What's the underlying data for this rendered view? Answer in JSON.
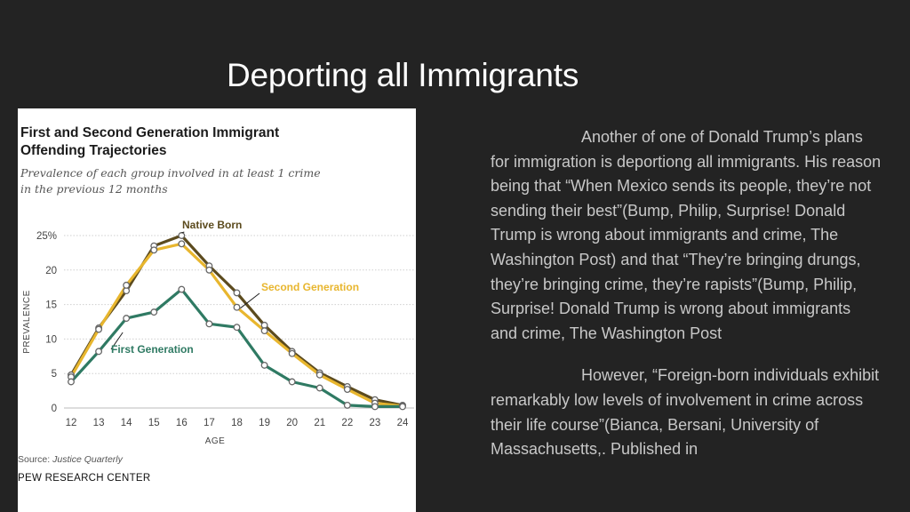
{
  "slide": {
    "title": "Deporting all Immigrants",
    "paragraphs": [
      "Another of one of Donald Trump’s plans for immigration is deportiong all immigrants.  His reason being that “When Mexico sends its people, they’re not sending their best”(Bump, Philip, Surprise! Donald Trump is wrong about immigrants and crime, The Washington Post) and that “They’re bringing drungs, they’re bringing crime, they’re rapists”(Bump, Philip, Surprise! Donald Trump is wrong about immigrants and crime, The Washington Post",
      "However, “Foreign-born individuals exhibit remarkably low levels of involvement in crime across their life course”(Bianca, Bersani, University of Massachusetts,. Published in"
    ]
  },
  "chart_data": {
    "type": "line",
    "title": "First and Second Generation Immigrant Offending Trajectories",
    "title_lines": [
      "First and Second Generation Immigrant",
      "Offending Trajectories"
    ],
    "subtitle_lines": [
      "Prevalence of each group involved in at least 1 crime",
      "in the previous 12 months"
    ],
    "xlabel": "AGE",
    "ylabel": "PREVALENCE",
    "x": [
      12,
      13,
      14,
      15,
      16,
      17,
      18,
      19,
      20,
      21,
      22,
      23,
      24
    ],
    "ylim": [
      0,
      25
    ],
    "yticks": [
      0,
      5,
      10,
      15,
      20,
      25
    ],
    "ytick_labels": [
      "0",
      "5",
      "10",
      "15",
      "20",
      "25%"
    ],
    "grid": true,
    "series": [
      {
        "name": "Native Born",
        "color": "#5c4b1e",
        "values": [
          4.8,
          11.6,
          17.0,
          23.5,
          25.0,
          20.6,
          16.7,
          12.0,
          8.2,
          5.1,
          3.1,
          1.2,
          0.4
        ]
      },
      {
        "name": "Second Generation",
        "color": "#e8b62e",
        "values": [
          4.5,
          11.4,
          17.8,
          22.9,
          23.8,
          20.0,
          14.6,
          11.2,
          7.9,
          4.8,
          2.7,
          0.7,
          0.3
        ]
      },
      {
        "name": "First Generation",
        "color": "#2f7a63",
        "values": [
          3.8,
          8.2,
          13.0,
          13.9,
          17.2,
          12.2,
          11.7,
          6.2,
          3.8,
          2.9,
          0.4,
          0.2,
          0.2
        ]
      }
    ],
    "source_label": "Source:",
    "source_value": "Justice Quarterly",
    "organization": "PEW RESEARCH CENTER"
  }
}
